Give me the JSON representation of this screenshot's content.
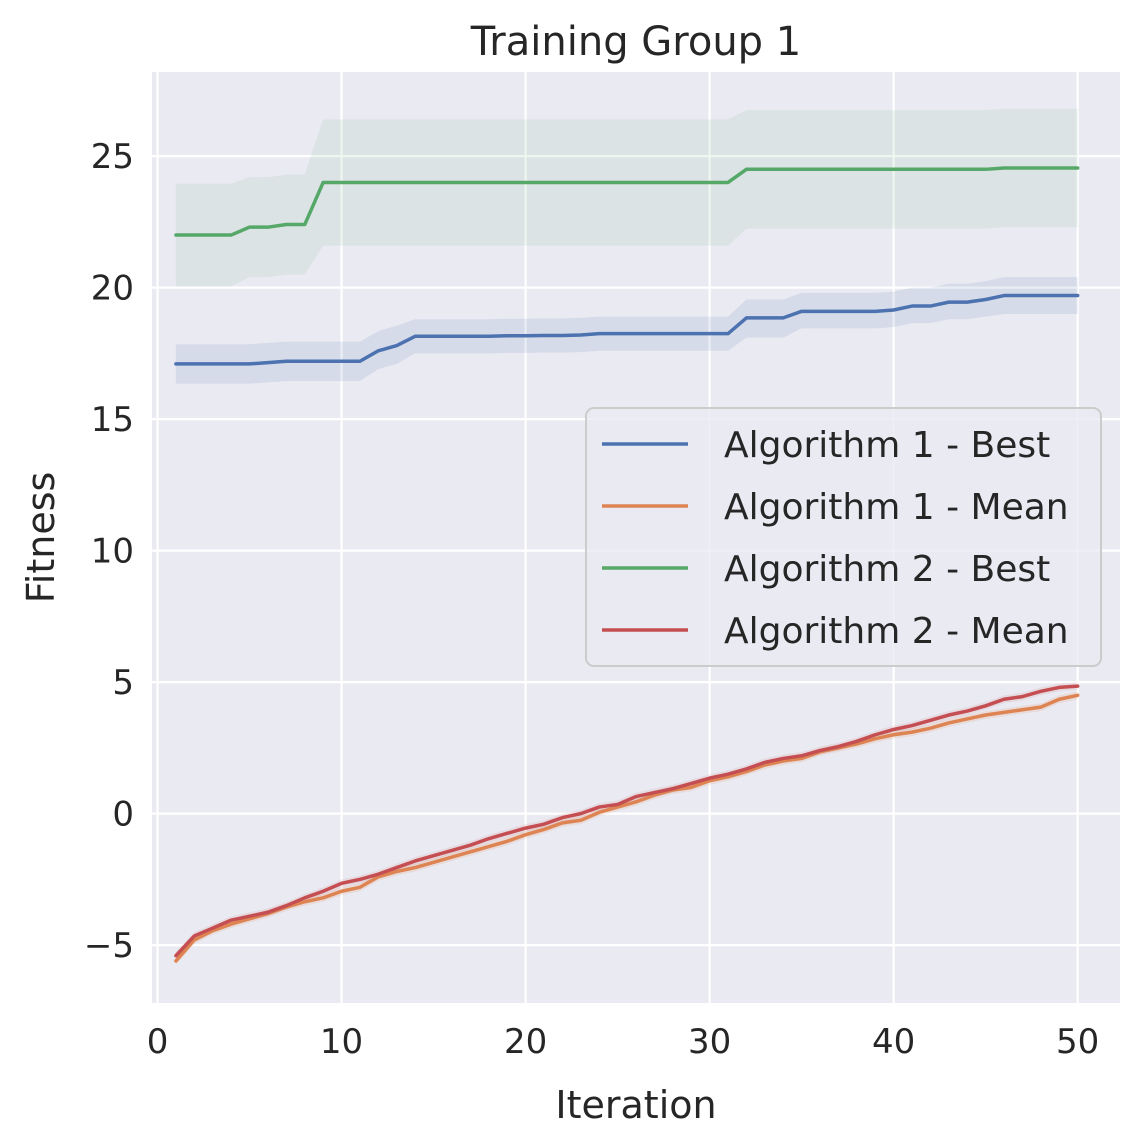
{
  "colors": {
    "plot_bg": "#eaeaf2",
    "grid": "#ffffff",
    "text": "#262626",
    "legend_bg": "#eaeaf2",
    "legend_border": "#cccccc"
  },
  "chart_data": {
    "type": "line",
    "title": "Training Group 1",
    "xlabel": "Iteration",
    "ylabel": "Fitness",
    "xlim": [
      -0.3,
      52.3
    ],
    "ylim": [
      -7.2,
      28.2
    ],
    "xticks": [
      0,
      10,
      20,
      30,
      40,
      50
    ],
    "yticks": [
      -5,
      0,
      5,
      10,
      15,
      20,
      25
    ],
    "ytick_labels": [
      "−5",
      "0",
      "5",
      "10",
      "15",
      "20",
      "25"
    ],
    "grid": true,
    "legend_position": "center-right",
    "x": [
      1,
      2,
      3,
      4,
      5,
      6,
      7,
      8,
      9,
      10,
      11,
      12,
      13,
      14,
      15,
      16,
      17,
      18,
      19,
      20,
      21,
      22,
      23,
      24,
      25,
      26,
      27,
      28,
      29,
      30,
      31,
      32,
      33,
      34,
      35,
      36,
      37,
      38,
      39,
      40,
      41,
      42,
      43,
      44,
      45,
      46,
      47,
      48,
      49,
      50
    ],
    "series": [
      {
        "name": "Algorithm 1 - Best",
        "color": "#4c72b0",
        "band_alpha": 0.12,
        "values": [
          17.1,
          17.1,
          17.1,
          17.1,
          17.1,
          17.15,
          17.2,
          17.2,
          17.2,
          17.2,
          17.2,
          17.6,
          17.8,
          18.15,
          18.15,
          18.15,
          18.15,
          18.15,
          18.17,
          18.17,
          18.18,
          18.18,
          18.2,
          18.25,
          18.25,
          18.25,
          18.25,
          18.25,
          18.25,
          18.25,
          18.25,
          18.85,
          18.85,
          18.85,
          19.1,
          19.1,
          19.1,
          19.1,
          19.1,
          19.15,
          19.3,
          19.3,
          19.45,
          19.45,
          19.55,
          19.7,
          19.7,
          19.7,
          19.7,
          19.7
        ],
        "lower": [
          16.35,
          16.35,
          16.35,
          16.35,
          16.35,
          16.4,
          16.45,
          16.45,
          16.45,
          16.45,
          16.45,
          16.9,
          17.1,
          17.5,
          17.5,
          17.5,
          17.5,
          17.5,
          17.52,
          17.52,
          17.53,
          17.53,
          17.55,
          17.6,
          17.6,
          17.6,
          17.6,
          17.6,
          17.6,
          17.6,
          17.6,
          18.1,
          18.1,
          18.1,
          18.45,
          18.45,
          18.45,
          18.45,
          18.45,
          18.5,
          18.65,
          18.65,
          18.8,
          18.8,
          18.9,
          19.0,
          19.0,
          19.0,
          19.0,
          19.0
        ],
        "upper": [
          17.85,
          17.85,
          17.85,
          17.85,
          17.85,
          17.9,
          17.95,
          17.95,
          17.95,
          17.95,
          17.95,
          18.35,
          18.55,
          18.8,
          18.8,
          18.8,
          18.8,
          18.8,
          18.82,
          18.82,
          18.83,
          18.83,
          18.85,
          18.9,
          18.9,
          18.9,
          18.9,
          18.9,
          18.9,
          18.9,
          18.9,
          19.55,
          19.55,
          19.55,
          19.8,
          19.8,
          19.8,
          19.8,
          19.8,
          19.85,
          20.0,
          20.0,
          20.15,
          20.15,
          20.25,
          20.4,
          20.4,
          20.4,
          20.4,
          20.4
        ]
      },
      {
        "name": "Algorithm 1 - Mean",
        "color": "#dd8452",
        "band_alpha": 0.15,
        "values": [
          -5.6,
          -4.8,
          -4.45,
          -4.2,
          -4.0,
          -3.8,
          -3.55,
          -3.35,
          -3.2,
          -2.95,
          -2.8,
          -2.4,
          -2.2,
          -2.05,
          -1.85,
          -1.65,
          -1.45,
          -1.25,
          -1.05,
          -0.8,
          -0.6,
          -0.35,
          -0.25,
          0.05,
          0.25,
          0.45,
          0.7,
          0.9,
          1.0,
          1.25,
          1.4,
          1.6,
          1.85,
          2.0,
          2.1,
          2.35,
          2.5,
          2.65,
          2.85,
          3.0,
          3.1,
          3.25,
          3.45,
          3.6,
          3.75,
          3.85,
          3.95,
          4.05,
          4.35,
          4.5
        ],
        "lower": [
          -5.75,
          -4.95,
          -4.6,
          -4.35,
          -4.15,
          -3.95,
          -3.7,
          -3.5,
          -3.35,
          -3.1,
          -2.95,
          -2.55,
          -2.35,
          -2.2,
          -2.0,
          -1.8,
          -1.6,
          -1.4,
          -1.2,
          -0.95,
          -0.75,
          -0.5,
          -0.4,
          -0.1,
          0.1,
          0.3,
          0.55,
          0.75,
          0.85,
          1.1,
          1.25,
          1.45,
          1.7,
          1.85,
          1.95,
          2.2,
          2.35,
          2.5,
          2.7,
          2.85,
          2.95,
          3.1,
          3.3,
          3.45,
          3.6,
          3.7,
          3.8,
          3.9,
          4.2,
          4.35
        ],
        "upper": [
          -5.45,
          -4.65,
          -4.3,
          -4.05,
          -3.85,
          -3.65,
          -3.4,
          -3.2,
          -3.05,
          -2.8,
          -2.65,
          -2.25,
          -2.05,
          -1.9,
          -1.7,
          -1.5,
          -1.3,
          -1.1,
          -0.9,
          -0.65,
          -0.45,
          -0.2,
          -0.1,
          0.2,
          0.4,
          0.6,
          0.85,
          1.05,
          1.15,
          1.4,
          1.55,
          1.75,
          2.0,
          2.15,
          2.25,
          2.5,
          2.65,
          2.8,
          3.0,
          3.15,
          3.25,
          3.4,
          3.6,
          3.75,
          3.9,
          4.0,
          4.1,
          4.2,
          4.5,
          4.65
        ]
      },
      {
        "name": "Algorithm 2 - Best",
        "color": "#55a868",
        "band_alpha": 0.1,
        "values": [
          22.0,
          22.0,
          22.0,
          22.0,
          22.3,
          22.3,
          22.4,
          22.4,
          24.0,
          24.0,
          24.0,
          24.0,
          24.0,
          24.0,
          24.0,
          24.0,
          24.0,
          24.0,
          24.0,
          24.0,
          24.0,
          24.0,
          24.0,
          24.0,
          24.0,
          24.0,
          24.0,
          24.0,
          24.0,
          24.0,
          24.0,
          24.5,
          24.5,
          24.5,
          24.5,
          24.5,
          24.5,
          24.5,
          24.5,
          24.5,
          24.5,
          24.5,
          24.5,
          24.5,
          24.5,
          24.55,
          24.55,
          24.55,
          24.55,
          24.55
        ],
        "lower": [
          20.05,
          20.05,
          20.05,
          20.05,
          20.4,
          20.4,
          20.5,
          20.5,
          21.6,
          21.6,
          21.6,
          21.6,
          21.6,
          21.6,
          21.6,
          21.6,
          21.6,
          21.6,
          21.6,
          21.6,
          21.6,
          21.6,
          21.6,
          21.6,
          21.6,
          21.6,
          21.6,
          21.6,
          21.6,
          21.6,
          21.6,
          22.25,
          22.25,
          22.25,
          22.25,
          22.25,
          22.25,
          22.25,
          22.25,
          22.25,
          22.25,
          22.25,
          22.25,
          22.25,
          22.25,
          22.3,
          22.3,
          22.3,
          22.3,
          22.3
        ],
        "upper": [
          23.95,
          23.95,
          23.95,
          23.95,
          24.2,
          24.2,
          24.3,
          24.3,
          26.4,
          26.4,
          26.4,
          26.4,
          26.4,
          26.4,
          26.4,
          26.4,
          26.4,
          26.4,
          26.4,
          26.4,
          26.4,
          26.4,
          26.4,
          26.4,
          26.4,
          26.4,
          26.4,
          26.4,
          26.4,
          26.4,
          26.4,
          26.75,
          26.75,
          26.75,
          26.75,
          26.75,
          26.75,
          26.75,
          26.75,
          26.75,
          26.75,
          26.75,
          26.75,
          26.75,
          26.75,
          26.8,
          26.8,
          26.8,
          26.8,
          26.8
        ]
      },
      {
        "name": "Algorithm 2 - Mean",
        "color": "#c44e52",
        "band_alpha": 0.1,
        "values": [
          -5.4,
          -4.65,
          -4.35,
          -4.05,
          -3.9,
          -3.75,
          -3.5,
          -3.2,
          -2.95,
          -2.65,
          -2.5,
          -2.3,
          -2.05,
          -1.8,
          -1.6,
          -1.4,
          -1.2,
          -0.95,
          -0.75,
          -0.55,
          -0.4,
          -0.15,
          0.0,
          0.25,
          0.35,
          0.65,
          0.8,
          0.95,
          1.15,
          1.35,
          1.5,
          1.7,
          1.95,
          2.1,
          2.2,
          2.4,
          2.55,
          2.75,
          3.0,
          3.2,
          3.35,
          3.55,
          3.75,
          3.9,
          4.1,
          4.35,
          4.45,
          4.65,
          4.8,
          4.85
        ],
        "lower": [
          -5.55,
          -4.8,
          -4.5,
          -4.2,
          -4.05,
          -3.9,
          -3.65,
          -3.35,
          -3.1,
          -2.8,
          -2.65,
          -2.45,
          -2.2,
          -1.95,
          -1.75,
          -1.55,
          -1.35,
          -1.1,
          -0.9,
          -0.7,
          -0.55,
          -0.3,
          -0.15,
          0.1,
          0.2,
          0.5,
          0.65,
          0.8,
          1.0,
          1.2,
          1.35,
          1.55,
          1.8,
          1.95,
          2.05,
          2.25,
          2.4,
          2.6,
          2.85,
          3.05,
          3.2,
          3.4,
          3.6,
          3.75,
          3.95,
          4.2,
          4.3,
          4.5,
          4.65,
          4.7
        ],
        "upper": [
          -5.25,
          -4.5,
          -4.2,
          -3.9,
          -3.75,
          -3.6,
          -3.35,
          -3.05,
          -2.8,
          -2.5,
          -2.35,
          -2.15,
          -1.9,
          -1.65,
          -1.45,
          -1.25,
          -1.05,
          -0.8,
          -0.6,
          -0.4,
          -0.25,
          0.0,
          0.15,
          0.4,
          0.5,
          0.8,
          0.95,
          1.1,
          1.3,
          1.5,
          1.65,
          1.85,
          2.1,
          2.25,
          2.35,
          2.55,
          2.7,
          2.9,
          3.15,
          3.35,
          3.5,
          3.7,
          3.9,
          4.05,
          4.25,
          4.5,
          4.6,
          4.8,
          4.95,
          5.0
        ]
      }
    ]
  }
}
